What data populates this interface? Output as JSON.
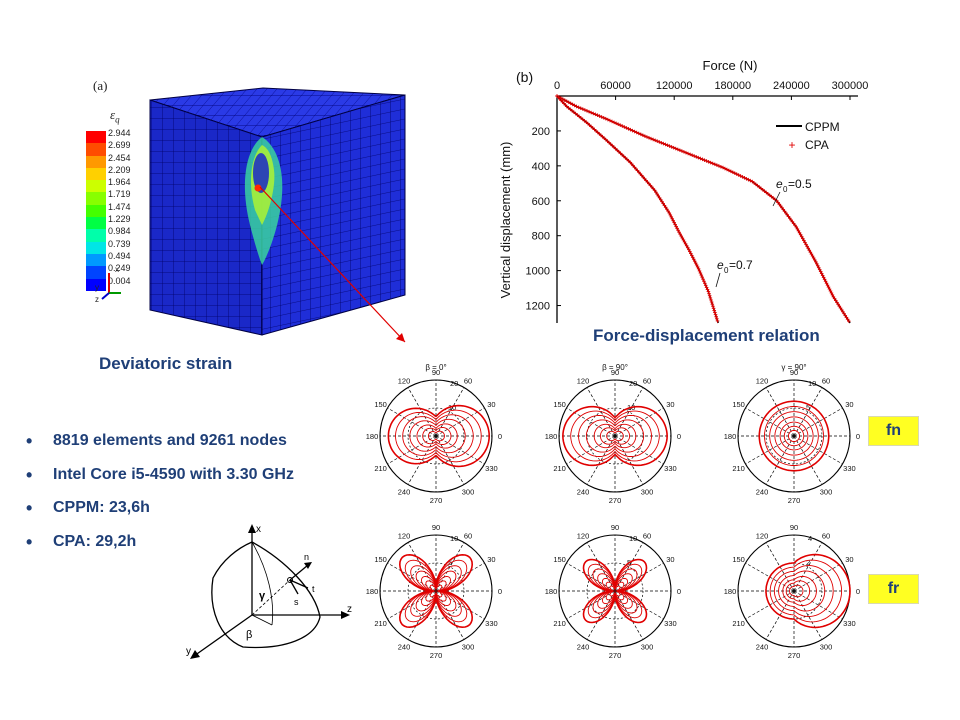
{
  "panel_a": {
    "label": "(a)",
    "legend_symbol": "ε",
    "legend_subscript": "q",
    "legend_values": [
      "2.944",
      "2.699",
      "2.454",
      "2.209",
      "1.964",
      "1.719",
      "1.474",
      "1.229",
      "0.984",
      "0.739",
      "0.494",
      "0.249",
      "0.004"
    ],
    "legend_colors": [
      "#ff0000",
      "#ff4d00",
      "#ff9900",
      "#ffd000",
      "#ccff00",
      "#88ff00",
      "#44ff00",
      "#00ff44",
      "#00ffaa",
      "#00e6e6",
      "#0099ff",
      "#0044ff",
      "#0000ff"
    ],
    "triad_labels": [
      "x",
      "y",
      "z"
    ],
    "caption": "Deviatoric strain"
  },
  "chart_data": {
    "type": "line",
    "panel_label": "(b)",
    "xlabel": "Force (N)",
    "ylabel": "Vertical displacement (mm)",
    "x_ticks": [
      "0",
      "60000",
      "120000",
      "180000",
      "240000",
      "300000"
    ],
    "y_ticks": [
      "200",
      "400",
      "600",
      "800",
      "1000",
      "1200"
    ],
    "xlim": [
      0,
      300000
    ],
    "ylim": [
      1300,
      0
    ],
    "legend_position": "top-right",
    "series": [
      {
        "name": "CPPM",
        "style": "solid black line",
        "color": "#000000"
      },
      {
        "name": "CPA",
        "style": "red + markers",
        "color": "#e00000"
      }
    ],
    "curves": [
      {
        "label": "e0=0.5",
        "x": [
          0,
          20000,
          50000,
          90000,
          130000,
          170000,
          200000,
          225000,
          245000,
          265000,
          283000,
          300000
        ],
        "y": [
          0,
          60,
          130,
          230,
          320,
          410,
          490,
          600,
          750,
          950,
          1150,
          1300
        ]
      },
      {
        "label": "e0=0.7",
        "x": [
          0,
          10000,
          30000,
          50000,
          75000,
          100000,
          115000,
          125000,
          135000,
          145000,
          155000,
          165000
        ],
        "y": [
          0,
          60,
          150,
          250,
          380,
          540,
          670,
          780,
          880,
          990,
          1120,
          1300
        ]
      }
    ],
    "annotations": [
      {
        "text": "e",
        "subscript": "0",
        "value": "=0.5"
      },
      {
        "text": "e",
        "subscript": "0",
        "value": "=0.7"
      }
    ],
    "caption": "Force-displacement relation"
  },
  "polar_plots": [
    {
      "title_sym": "β",
      "title_val": "= 0",
      "max_label": "20",
      "mid_label": "10"
    },
    {
      "title_sym": "β",
      "title_val": "= 90",
      "max_label": "20",
      "mid_label": "10"
    },
    {
      "title_sym": "γ",
      "title_val": "= 90",
      "max_label": "10",
      "mid_label": "5"
    },
    {
      "title_sym": "",
      "title_val": "",
      "max_label": "10",
      "mid_label": "5"
    },
    {
      "title_sym": "",
      "title_val": "",
      "max_label": "10",
      "mid_label": "5"
    },
    {
      "title_sym": "",
      "title_val": "",
      "max_label": "4",
      "mid_label": "2"
    }
  ],
  "polar_angle_labels": [
    "0",
    "30",
    "60",
    "90",
    "120",
    "150",
    "180",
    "210",
    "240",
    "270",
    "300",
    "330"
  ],
  "tags": {
    "row1": "fn",
    "row2": "fr"
  },
  "bullets": [
    "8819 elements and 9261 nodes",
    "Intel Core i5-4590 with 3.30 GHz",
    "CPPM: 23,6h",
    "CPA: 29,2h"
  ],
  "diagram_labels": {
    "x": "x",
    "y": "y",
    "z": "z",
    "n": "n",
    "t": "t",
    "s": "s",
    "gamma": "γ",
    "beta": "β"
  }
}
